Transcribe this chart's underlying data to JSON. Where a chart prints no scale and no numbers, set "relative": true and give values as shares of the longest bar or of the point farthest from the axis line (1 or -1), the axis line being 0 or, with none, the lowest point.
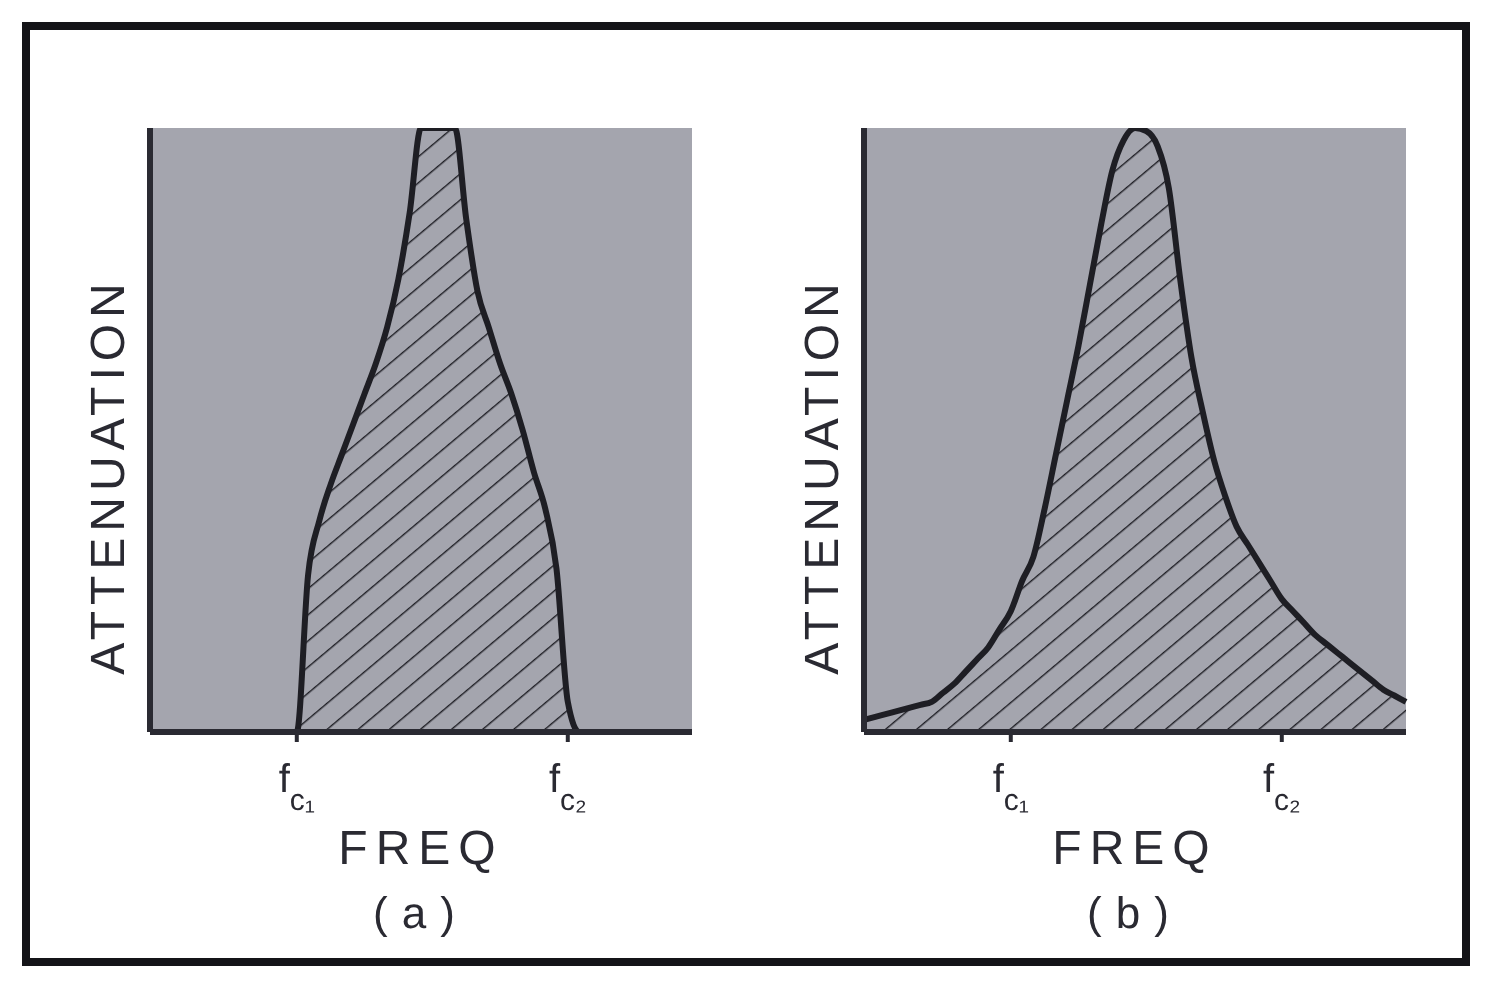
{
  "chart_data": [
    {
      "type": "area",
      "relative": true,
      "xlabel": "FREQ",
      "ylabel": "ATTENUATION",
      "annotations": [
        "(a)"
      ],
      "color": "#1e1e24",
      "categories": [
        null,
        null,
        null,
        null,
        null,
        null,
        null,
        null,
        null,
        null,
        null,
        null,
        null,
        "f$_{c₁}$",
        null,
        null,
        null,
        null,
        null,
        null,
        null,
        null,
        null,
        null,
        null,
        null,
        null,
        null,
        null,
        null,
        null,
        null,
        null,
        null,
        null,
        null,
        null,
        "f$_{c₂}$",
        null,
        null,
        null,
        null,
        null,
        null,
        null,
        null,
        null,
        null,
        null
      ],
      "values": [
        0,
        0,
        0,
        0,
        0,
        0,
        0,
        0,
        0,
        0,
        0,
        0,
        0,
        0,
        0.26,
        0.35,
        0.41,
        0.46,
        0.51,
        0.56,
        0.61,
        0.67,
        0.75,
        0.86,
        1,
        1,
        1,
        1,
        0.85,
        0.73,
        0.67,
        0.61,
        0.56,
        0.5,
        0.43,
        0.37,
        0.27,
        0.05,
        0,
        0,
        0,
        0,
        0,
        0,
        0,
        0,
        0,
        0,
        0
      ]
    },
    {
      "type": "area",
      "relative": true,
      "xlabel": "FREQ",
      "ylabel": "ATTENUATION",
      "annotations": [
        "(b)"
      ],
      "color": "#1e1e24",
      "categories": [
        null,
        null,
        null,
        null,
        null,
        null,
        null,
        null,
        null,
        null,
        null,
        null,
        null,
        "f$_{c₁}$",
        null,
        null,
        null,
        null,
        null,
        null,
        null,
        null,
        null,
        null,
        null,
        null,
        null,
        null,
        null,
        null,
        null,
        null,
        null,
        null,
        null,
        null,
        null,
        "f$_{c₂}$",
        null,
        null,
        null,
        null,
        null,
        null,
        null,
        null,
        null,
        null,
        null
      ],
      "values": [
        0.02,
        0.025,
        0.03,
        0.035,
        0.04,
        0.045,
        0.05,
        0.065,
        0.08,
        0.1,
        0.12,
        0.14,
        0.17,
        0.2,
        0.25,
        0.29,
        0.37,
        0.46,
        0.55,
        0.64,
        0.74,
        0.84,
        0.93,
        0.98,
        1,
        0.995,
        0.97,
        0.9,
        0.75,
        0.62,
        0.53,
        0.45,
        0.39,
        0.34,
        0.31,
        0.28,
        0.25,
        0.22,
        0.2,
        0.18,
        0.16,
        0.145,
        0.13,
        0.115,
        0.1,
        0.085,
        0.07,
        0.06,
        0.05
      ]
    }
  ]
}
